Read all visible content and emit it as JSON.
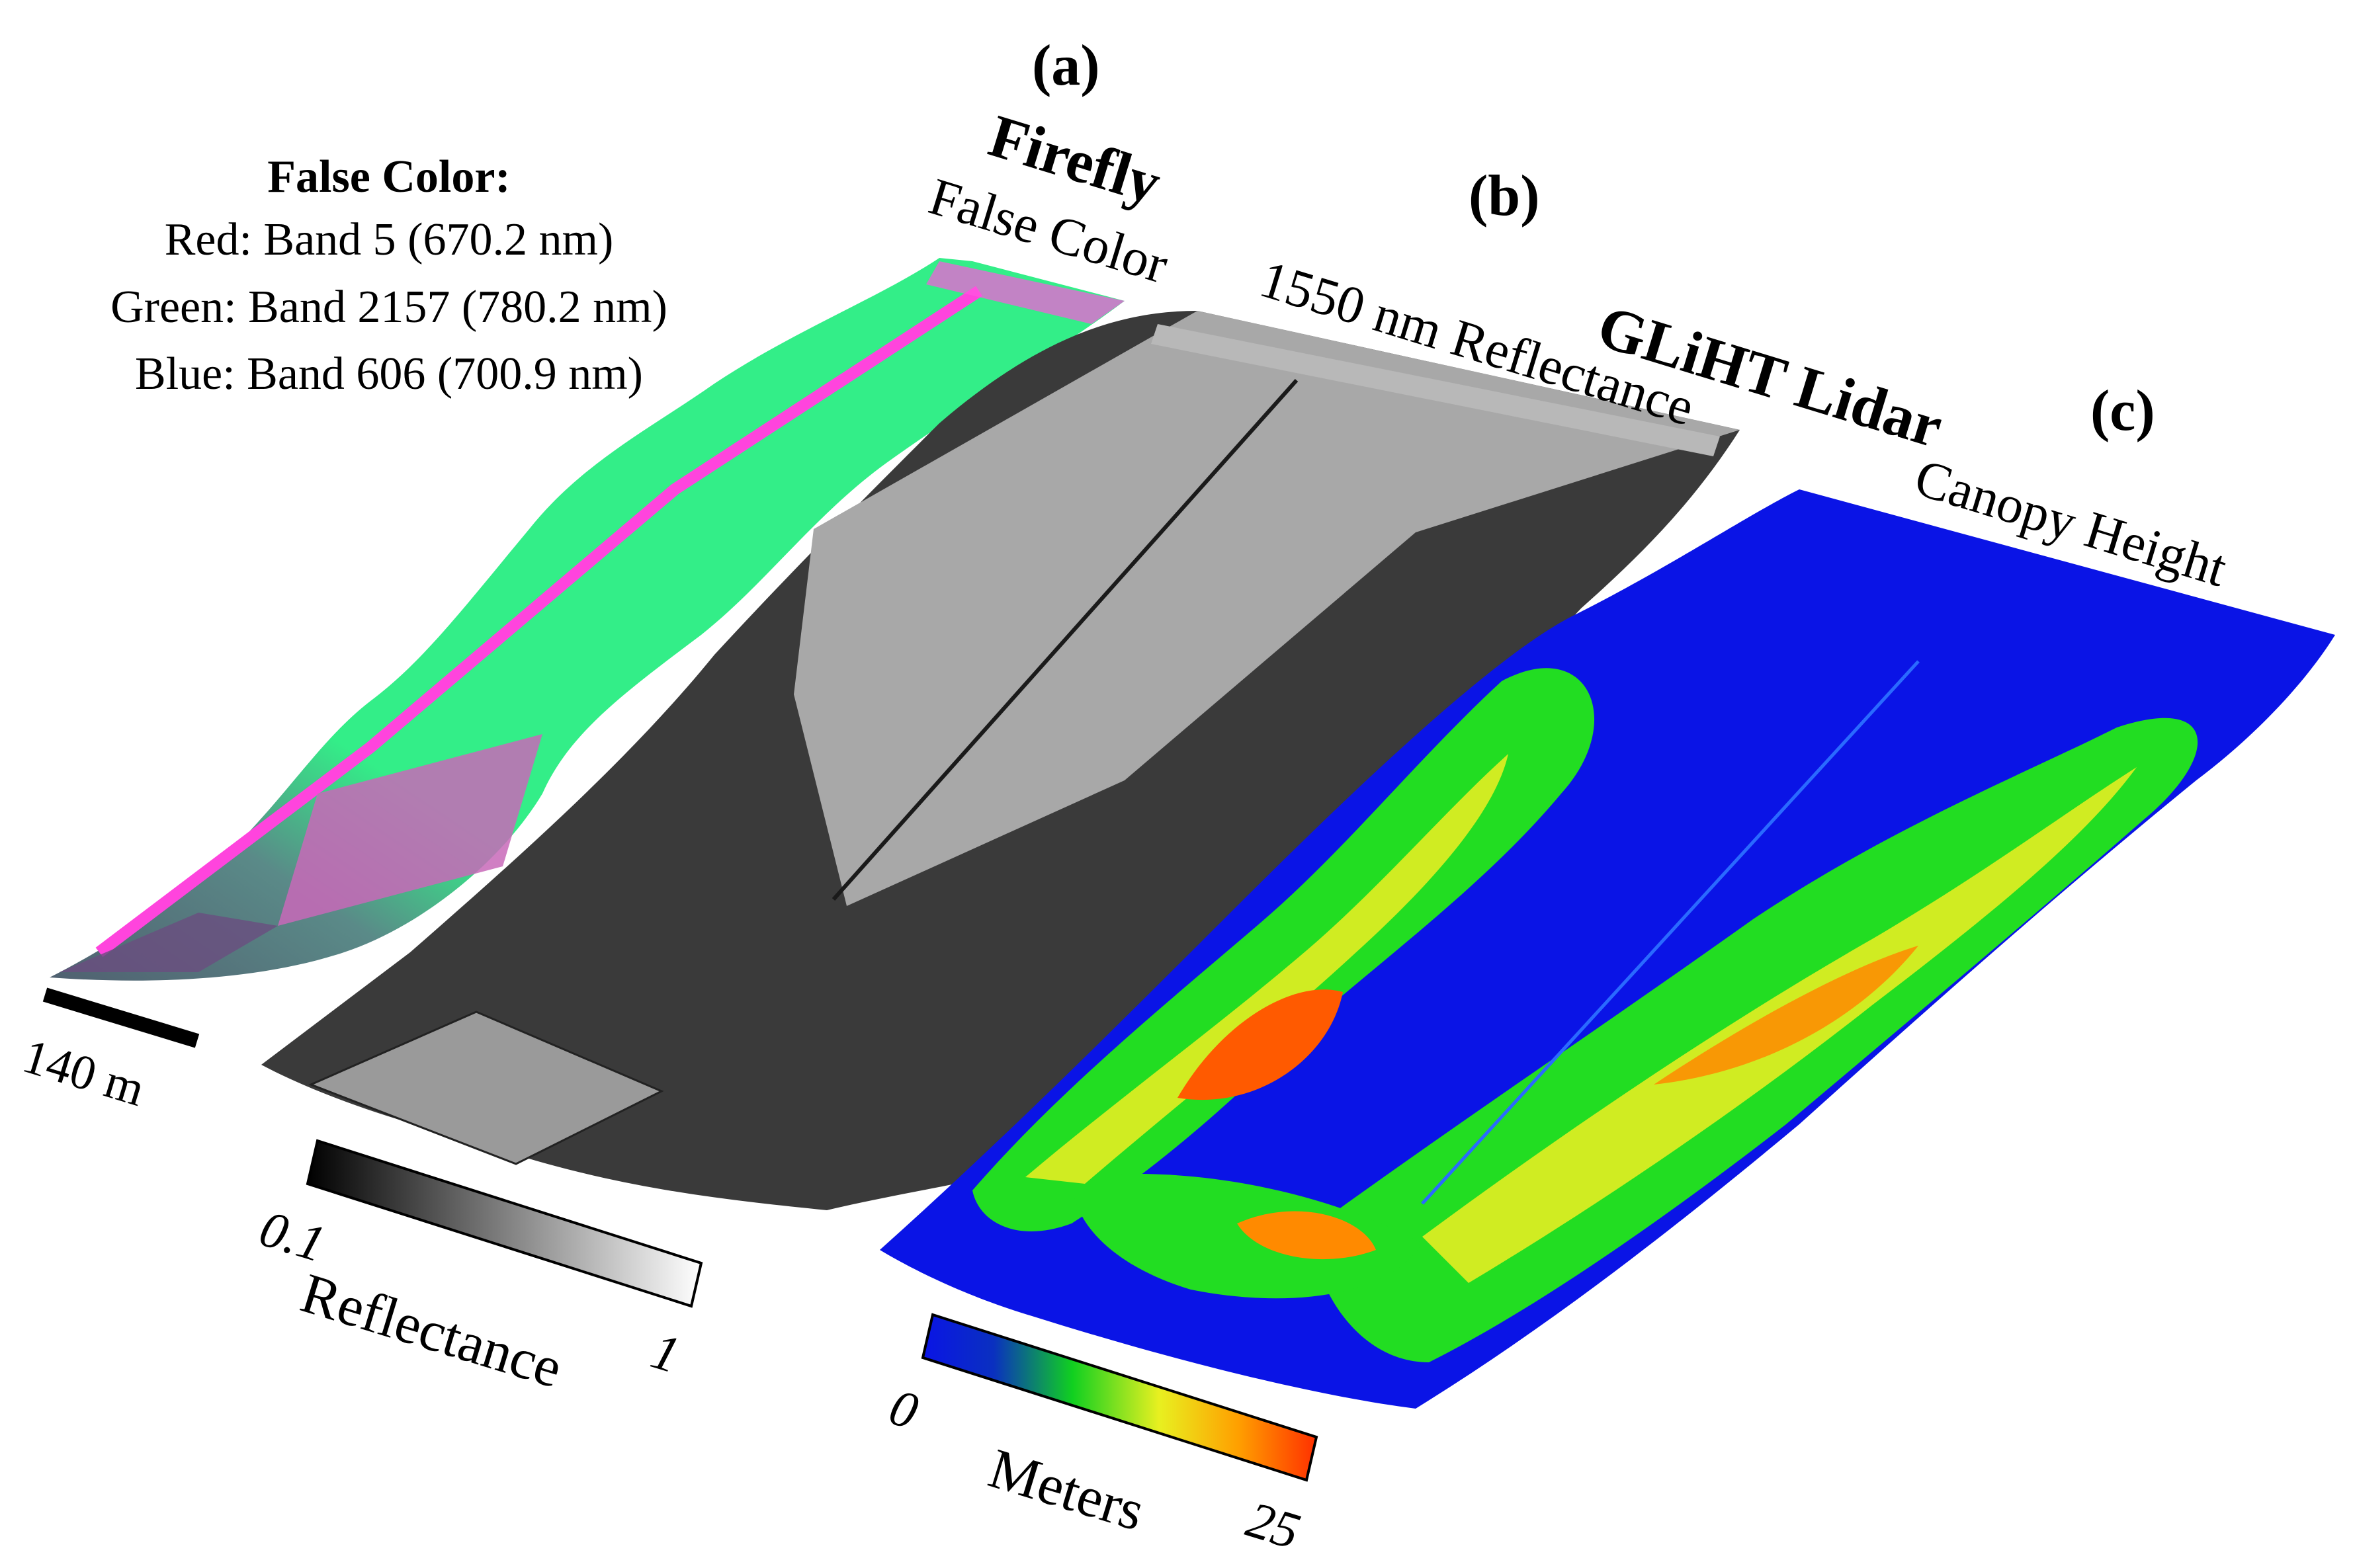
{
  "panels": {
    "a": {
      "letter": "(a)",
      "sensor": "Firefly",
      "product": "False Color",
      "legend": {
        "title": "False Color:",
        "red": "Red: Band 5 (670.2 nm)",
        "green": "Green: Band 2157 (780.2 nm)",
        "blue": "Blue: Band 606 (700.9 nm)"
      },
      "scale_bar": "140 m"
    },
    "b": {
      "letter": "(b)",
      "product": "1550 nm Reflectance",
      "colorbar": {
        "min": "0.1",
        "max": "1",
        "label": "Reflectance"
      }
    },
    "c": {
      "letter": "(c)",
      "sensor": "GLiHT Lidar",
      "product": "Canopy Height",
      "colorbar": {
        "min": "0",
        "max": "25",
        "label": "Meters"
      }
    }
  },
  "colors": {
    "false_color_vegetation": "#33ee88",
    "false_color_road": "#ff44dd",
    "reflectance_field": "#a8a8a8",
    "reflectance_forest": "#3a3a3a",
    "canopy_ground": "#0a14e6",
    "canopy_low": "#22dd22",
    "canopy_mid": "#eeee22",
    "canopy_high": "#ff5a00"
  }
}
